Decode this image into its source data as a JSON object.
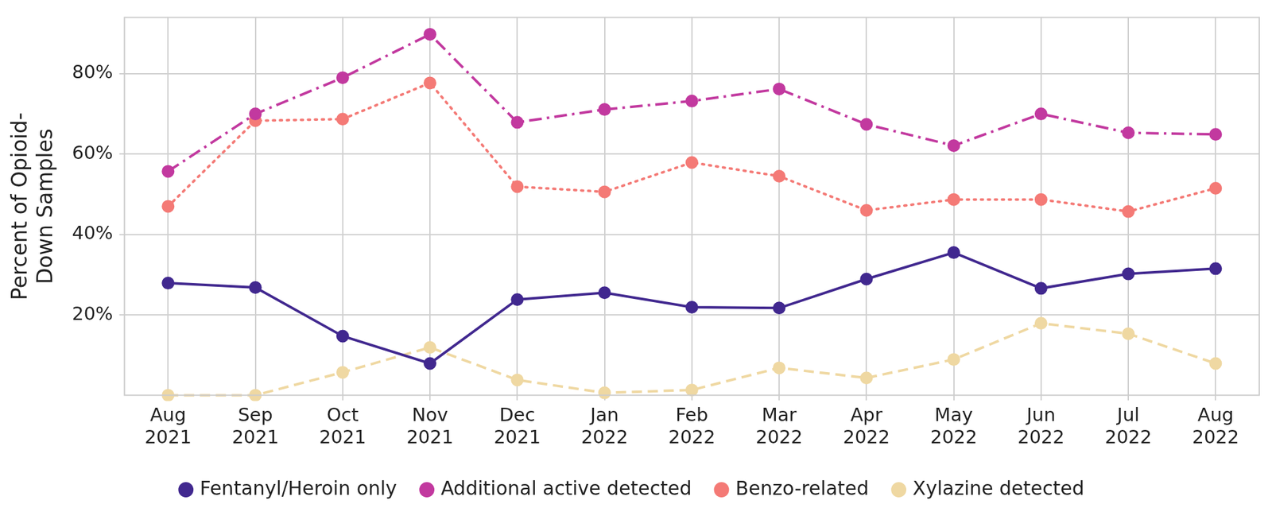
{
  "chart_data": {
    "type": "line",
    "y_label": [
      "Percent of Opioid-",
      "Down Samples"
    ],
    "categories": [
      "Aug 2021",
      "Sep 2021",
      "Oct 2021",
      "Nov 2021",
      "Dec 2021",
      "Jan 2022",
      "Feb 2022",
      "Mar 2022",
      "Apr 2022",
      "May 2022",
      "Jun 2022",
      "Jul 2022",
      "Aug 2022"
    ],
    "series": [
      {
        "name": "Fentanyl/Heroin only",
        "color": "#41288f",
        "line_style": "solid",
        "marker": "circle",
        "values": [
          27.9,
          26.8,
          14.7,
          7.9,
          23.8,
          25.5,
          21.9,
          21.7,
          28.9,
          35.5,
          26.6,
          30.2,
          31.5
        ]
      },
      {
        "name": "Additional active detected",
        "color": "#c2399f",
        "line_style": "dashdot",
        "marker": "circle",
        "values": [
          55.7,
          70,
          79,
          89.8,
          67.9,
          71.1,
          73.2,
          76.2,
          67.4,
          62.1,
          70,
          65.3,
          64.9
        ]
      },
      {
        "name": "Benzo-related",
        "color": "#f47a76",
        "line_style": "dotted",
        "marker": "circle",
        "values": [
          47,
          68.3,
          68.7,
          77.7,
          51.9,
          50.6,
          57.9,
          54.5,
          46,
          48.7,
          48.7,
          45.7,
          51.5
        ]
      },
      {
        "name": "Xylazine detected",
        "color": "#efd8a2",
        "line_style": "dashed",
        "marker": "circle",
        "values": [
          0,
          0,
          5.7,
          11.9,
          3.8,
          0.6,
          1.3,
          6.8,
          4.3,
          8.9,
          17.9,
          15.3,
          7.9
        ]
      }
    ],
    "ylim": [
      0,
      94
    ],
    "yticks": [
      {
        "value": 20,
        "label": "20%"
      },
      {
        "value": 40,
        "label": "40%"
      },
      {
        "value": 60,
        "label": "60%"
      },
      {
        "value": 80,
        "label": "80%"
      }
    ],
    "grid": true,
    "legend": "bottom"
  }
}
